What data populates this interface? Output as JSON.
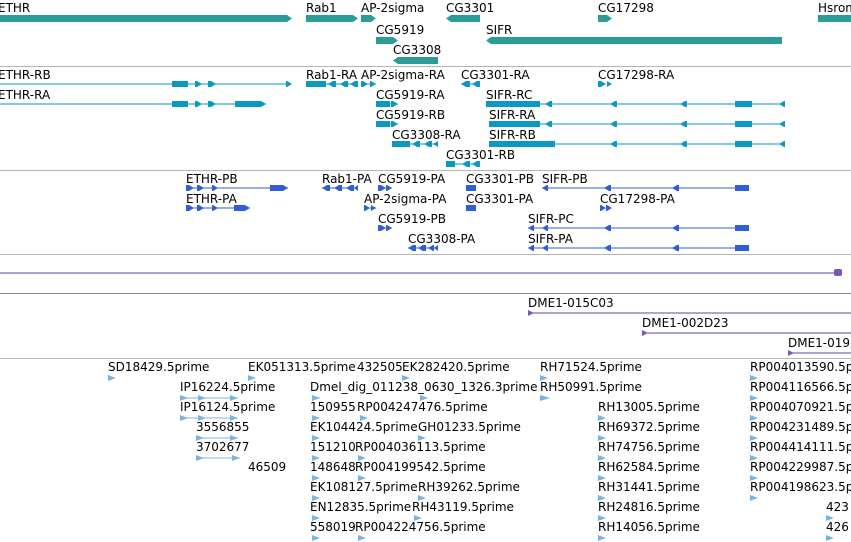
{
  "colors": {
    "gene": "#2c9c98",
    "mrna": "#0b99c4",
    "protein": "#2f5fd6",
    "clone_line": "#6644aa",
    "clone_mark": "#7d55c0",
    "est": "#7ab4e0"
  },
  "tracks": {
    "genes": [
      {
        "label": "ETHR"
      },
      {
        "label": "Rab1"
      },
      {
        "label": "AP-2sigma"
      },
      {
        "label": "CG3301"
      },
      {
        "label": "CG17298"
      },
      {
        "label": "Hsromega"
      },
      {
        "label": "CG5919"
      },
      {
        "label": "SIFR"
      },
      {
        "label": "CG3308"
      }
    ],
    "transcripts": [
      {
        "label": "ETHR-RB"
      },
      {
        "label": "ETHR-RA"
      },
      {
        "label": "Rab1-RA"
      },
      {
        "label": "AP-2sigma-RA"
      },
      {
        "label": "CG3301-RA"
      },
      {
        "label": "CG17298-RA"
      },
      {
        "label": "CG5919-RA"
      },
      {
        "label": "SIFR-RC"
      },
      {
        "label": "CG5919-RB"
      },
      {
        "label": "SIFR-RA"
      },
      {
        "label": "CG3308-RA"
      },
      {
        "label": "SIFR-RB"
      },
      {
        "label": "CG3301-RB"
      }
    ],
    "proteins": [
      {
        "label": "ETHR-PB"
      },
      {
        "label": "Rab1-PA"
      },
      {
        "label": "CG5919-PA"
      },
      {
        "label": "CG3301-PB"
      },
      {
        "label": "SIFR-PB"
      },
      {
        "label": "ETHR-PA"
      },
      {
        "label": "AP-2sigma-PA"
      },
      {
        "label": "CG3301-PA"
      },
      {
        "label": "CG17298-PA"
      },
      {
        "label": "CG5919-PB"
      },
      {
        "label": "SIFR-PC"
      },
      {
        "label": "CG3308-PA"
      },
      {
        "label": "SIFR-PA"
      }
    ],
    "clones": [
      {
        "label": "DME1-015C03"
      },
      {
        "label": "DME1-002D23"
      },
      {
        "label": "DME1-019"
      }
    ],
    "ests": [
      {
        "label": "SD18429.5prime"
      },
      {
        "label": "EK051313.5prime"
      },
      {
        "label": "432505"
      },
      {
        "label": "EK282420.5prime"
      },
      {
        "label": "RH71524.5prime"
      },
      {
        "label": "RP004013590.5p"
      },
      {
        "label": "IP16224.5prime"
      },
      {
        "label": "Dmel_dig_011238_0630_1326.3prime"
      },
      {
        "label": "RH50991.5prime"
      },
      {
        "label": "RP004116566.5p"
      },
      {
        "label": "IP16124.5prime"
      },
      {
        "label": "150955"
      },
      {
        "label": "RP004247476.5prime"
      },
      {
        "label": "RH13005.5prime"
      },
      {
        "label": "RP004070921.5p"
      },
      {
        "label": "3556855"
      },
      {
        "label": "EK104424.5prime"
      },
      {
        "label": "GH01233.5prime"
      },
      {
        "label": "RH69372.5prime"
      },
      {
        "label": "RP004231489.5p"
      },
      {
        "label": "3702677"
      },
      {
        "label": "151210"
      },
      {
        "label": "RP004036113.5prime"
      },
      {
        "label": "RH74756.5prime"
      },
      {
        "label": "RP004414111.5p"
      },
      {
        "label": "46509"
      },
      {
        "label": "148648"
      },
      {
        "label": "RP004199542.5prime"
      },
      {
        "label": "RH62584.5prime"
      },
      {
        "label": "RP004229987.5p"
      },
      {
        "label": "EK108127.5prime"
      },
      {
        "label": "RH39262.5prime"
      },
      {
        "label": "RH31441.5prime"
      },
      {
        "label": "RP004198623.5p"
      },
      {
        "label": "EN12835.5prime"
      },
      {
        "label": "RH43119.5prime"
      },
      {
        "label": "RH24816.5prime"
      },
      {
        "label": "423"
      },
      {
        "label": "558019"
      },
      {
        "label": "RP004224756.5prime"
      },
      {
        "label": "RH14056.5prime"
      },
      {
        "label": "426"
      }
    ]
  }
}
